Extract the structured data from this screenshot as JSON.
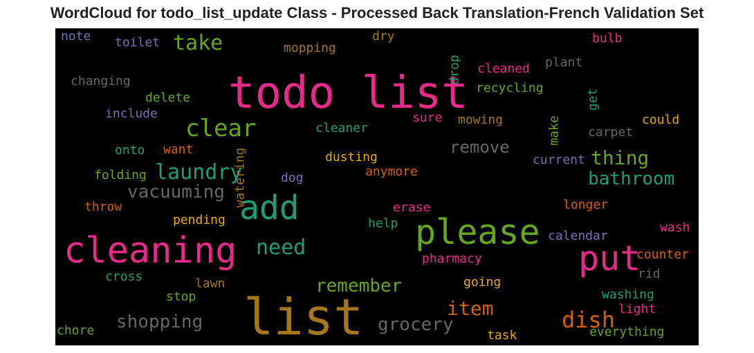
{
  "title": "WordCloud for todo_list_update Class - Processed Back Translation-French Validation Set",
  "words": [
    {
      "text": "todo list",
      "color": "#e7298a"
    },
    {
      "text": "list",
      "color": "#a6761d"
    },
    {
      "text": "cleaning",
      "color": "#e7298a"
    },
    {
      "text": "please",
      "color": "#66a61e"
    },
    {
      "text": "put",
      "color": "#e7298a"
    },
    {
      "text": "add",
      "color": "#1b9e77"
    },
    {
      "text": "clear",
      "color": "#66a61e"
    },
    {
      "text": "laundry",
      "color": "#1b9e77"
    },
    {
      "text": "take",
      "color": "#66a61e"
    },
    {
      "text": "vacuuming",
      "color": "#666666"
    },
    {
      "text": "need",
      "color": "#1b9e77"
    },
    {
      "text": "remember",
      "color": "#66a61e"
    },
    {
      "text": "shopping",
      "color": "#666666"
    },
    {
      "text": "grocery",
      "color": "#666666"
    },
    {
      "text": "dish",
      "color": "#d95f02"
    },
    {
      "text": "item",
      "color": "#d95f02"
    },
    {
      "text": "remove",
      "color": "#666666"
    },
    {
      "text": "thing",
      "color": "#66a61e"
    },
    {
      "text": "bathroom",
      "color": "#1b9e77"
    },
    {
      "text": "note",
      "color": "#7570b3"
    },
    {
      "text": "toilet",
      "color": "#7570b3"
    },
    {
      "text": "mopping",
      "color": "#a6761d"
    },
    {
      "text": "dry",
      "color": "#a6761d"
    },
    {
      "text": "drop",
      "color": "#1b9e77"
    },
    {
      "text": "bulb",
      "color": "#e7298a"
    },
    {
      "text": "cleaned",
      "color": "#e7298a"
    },
    {
      "text": "plant",
      "color": "#666666"
    },
    {
      "text": "changing",
      "color": "#666666"
    },
    {
      "text": "delete",
      "color": "#66a61e"
    },
    {
      "text": "recycling",
      "color": "#66a61e"
    },
    {
      "text": "get",
      "color": "#1b9e77"
    },
    {
      "text": "include",
      "color": "#7570b3"
    },
    {
      "text": "sure",
      "color": "#e7298a"
    },
    {
      "text": "mowing",
      "color": "#a6761d"
    },
    {
      "text": "make",
      "color": "#66a61e"
    },
    {
      "text": "could",
      "color": "#e6ab02"
    },
    {
      "text": "cleaner",
      "color": "#1b9e77"
    },
    {
      "text": "carpet",
      "color": "#666666"
    },
    {
      "text": "onto",
      "color": "#1b9e77"
    },
    {
      "text": "want",
      "color": "#d95f02"
    },
    {
      "text": "watering",
      "color": "#a6761d"
    },
    {
      "text": "dusting",
      "color": "#e6ab02"
    },
    {
      "text": "current",
      "color": "#7570b3"
    },
    {
      "text": "folding",
      "color": "#66a61e"
    },
    {
      "text": "dog",
      "color": "#7570b3"
    },
    {
      "text": "anymore",
      "color": "#d95f02"
    },
    {
      "text": "throw",
      "color": "#d95f02"
    },
    {
      "text": "erase",
      "color": "#e7298a"
    },
    {
      "text": "longer",
      "color": "#d95f02"
    },
    {
      "text": "pending",
      "color": "#e6ab02"
    },
    {
      "text": "help",
      "color": "#1b9e77"
    },
    {
      "text": "wash",
      "color": "#e7298a"
    },
    {
      "text": "calendar",
      "color": "#7570b3"
    },
    {
      "text": "counter",
      "color": "#d95f02"
    },
    {
      "text": "pharmacy",
      "color": "#e7298a"
    },
    {
      "text": "cross",
      "color": "#1b9e77"
    },
    {
      "text": "rid",
      "color": "#666666"
    },
    {
      "text": "lawn",
      "color": "#a6761d"
    },
    {
      "text": "going",
      "color": "#e6ab02"
    },
    {
      "text": "stop",
      "color": "#66a61e"
    },
    {
      "text": "washing",
      "color": "#1b9e77"
    },
    {
      "text": "light",
      "color": "#e7298a"
    },
    {
      "text": "chore",
      "color": "#66a61e"
    },
    {
      "text": "task",
      "color": "#e6ab02"
    },
    {
      "text": "everything",
      "color": "#66a61e"
    }
  ]
}
